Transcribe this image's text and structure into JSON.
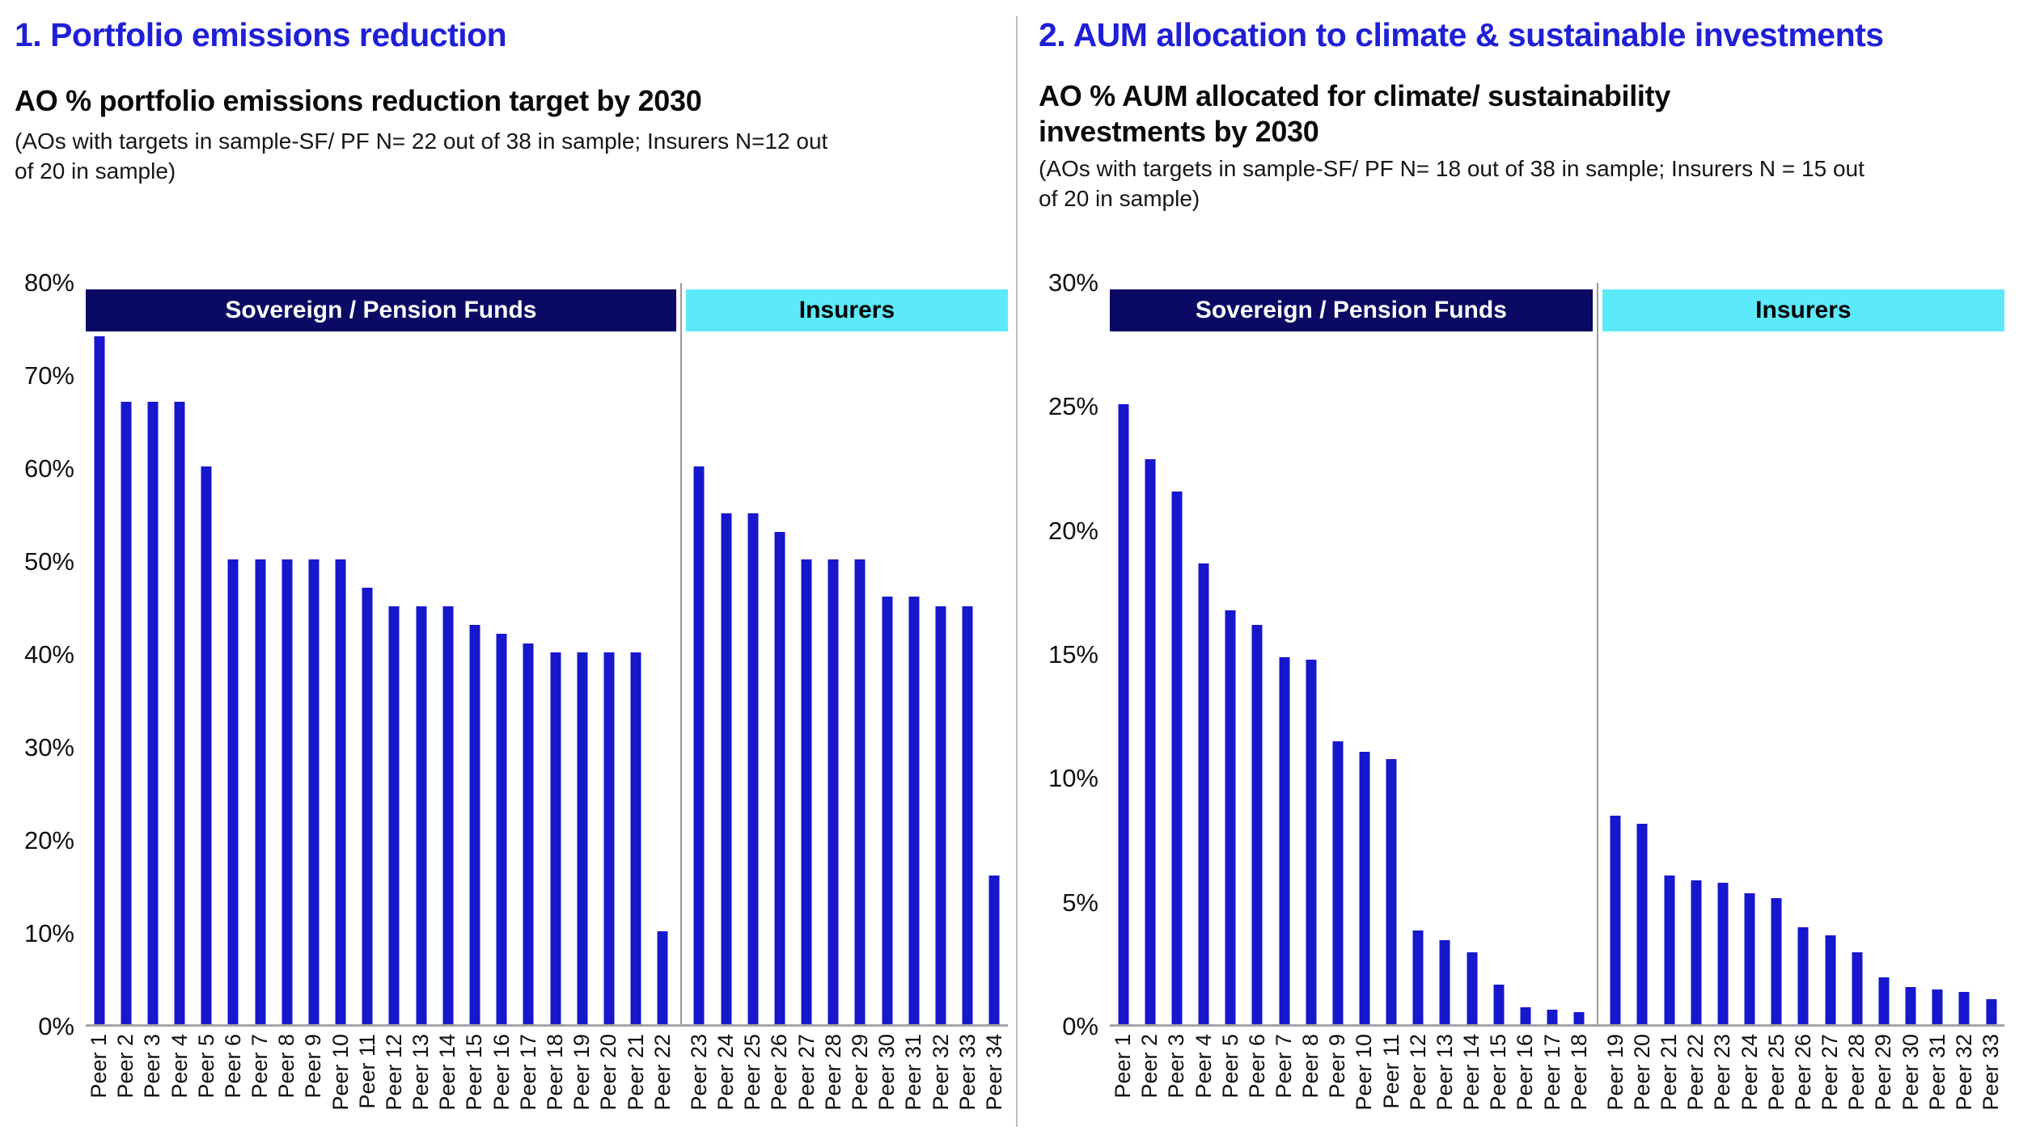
{
  "colors": {
    "bar_blue": "#1717CD",
    "banner_navy": "#0A0A64",
    "banner_cyan": "#5CE9FA",
    "heading_blue": "#1F1FD6",
    "axis_gray": "#A6A6A6",
    "section_divider_gray": "#999999",
    "panel_separator_gray": "#BDBDBD"
  },
  "chart_data": [
    {
      "type": "bar",
      "heading": "1. Portfolio emissions reduction",
      "title_lines": [
        "AO % portfolio emissions reduction target by 2030"
      ],
      "subtitle_lines": [
        "(AOs with targets in sample-SF/ PF N= 22 out of 38 in sample; Insurers N=12 out",
        "of 20 in sample)"
      ],
      "ylabel": "",
      "ylim": [
        0,
        80
      ],
      "grid": false,
      "yticks": [
        {
          "v": 0,
          "label": "0%"
        },
        {
          "v": 10,
          "label": "10%"
        },
        {
          "v": 20,
          "label": "20%"
        },
        {
          "v": 30,
          "label": "30%"
        },
        {
          "v": 40,
          "label": "40%"
        },
        {
          "v": 50,
          "label": "50%"
        },
        {
          "v": 60,
          "label": "60%"
        },
        {
          "v": 70,
          "label": "70%"
        },
        {
          "v": 80,
          "label": "80%"
        }
      ],
      "groups": [
        {
          "name": "Sovereign / Pension Funds",
          "banner": "navy",
          "categories": [
            "Peer 1",
            "Peer 2",
            "Peer 3",
            "Peer 4",
            "Peer 5",
            "Peer 6",
            "Peer 7",
            "Peer 8",
            "Peer 9",
            "Peer 10",
            "Peer 11",
            "Peer 12",
            "Peer 13",
            "Peer 14",
            "Peer 15",
            "Peer 16",
            "Peer 17",
            "Peer 18",
            "Peer 19",
            "Peer 20",
            "Peer 21",
            "Peer 22"
          ],
          "values": [
            74,
            67,
            67,
            67,
            60,
            50,
            50,
            50,
            50,
            50,
            47,
            45,
            45,
            45,
            43,
            42,
            41,
            40,
            40,
            40,
            40,
            10
          ]
        },
        {
          "name": "Insurers",
          "banner": "cyan",
          "categories": [
            "Peer 23",
            "Peer 24",
            "Peer 25",
            "Peer 26",
            "Peer 27",
            "Peer 28",
            "Peer 29",
            "Peer 30",
            "Peer 31",
            "Peer 32",
            "Peer 33",
            "Peer 34"
          ],
          "values": [
            60,
            55,
            55,
            53,
            50,
            50,
            50,
            46,
            46,
            45,
            45,
            16
          ]
        }
      ]
    },
    {
      "type": "bar",
      "heading": "2. AUM allocation to climate & sustainable investments",
      "title_lines": [
        "AO % AUM allocated for climate/ sustainability",
        "investments by 2030"
      ],
      "subtitle_lines": [
        "(AOs with targets in sample-SF/ PF N= 18 out of 38 in sample; Insurers N = 15 out",
        "of 20 in sample)"
      ],
      "ylabel": "",
      "ylim": [
        0,
        30
      ],
      "grid": false,
      "yticks": [
        {
          "v": 0,
          "label": "0%"
        },
        {
          "v": 5,
          "label": "5%"
        },
        {
          "v": 10,
          "label": "10%"
        },
        {
          "v": 15,
          "label": "15%"
        },
        {
          "v": 20,
          "label": "20%"
        },
        {
          "v": 25,
          "label": "25%"
        },
        {
          "v": 30,
          "label": "30%"
        }
      ],
      "groups": [
        {
          "name": "Sovereign / Pension Funds",
          "banner": "navy",
          "categories": [
            "Peer 1",
            "Peer 2",
            "Peer 3",
            "Peer 4",
            "Peer 5",
            "Peer 6",
            "Peer 7",
            "Peer 8",
            "Peer 9",
            "Peer 10",
            "Peer 11",
            "Peer 12",
            "Peer 13",
            "Peer 14",
            "Peer 15",
            "Peer 16",
            "Peer 17",
            "Peer 18"
          ],
          "values": [
            25,
            22.8,
            21.5,
            18.6,
            16.7,
            16.1,
            14.8,
            14.7,
            11.4,
            11.0,
            10.7,
            3.8,
            3.4,
            2.9,
            1.6,
            0.7,
            0.6,
            0.5
          ]
        },
        {
          "name": "Insurers",
          "banner": "cyan",
          "categories": [
            "Peer 19",
            "Peer 20",
            "Peer 21",
            "Peer 22",
            "Peer 23",
            "Peer 24",
            "Peer 25",
            "Peer 26",
            "Peer 27",
            "Peer 28",
            "Peer 29",
            "Peer 30",
            "Peer 31",
            "Peer 32",
            "Peer 33"
          ],
          "values": [
            8.4,
            8.1,
            6.0,
            5.8,
            5.7,
            5.3,
            5.1,
            3.9,
            3.6,
            2.9,
            1.9,
            1.5,
            1.4,
            1.3,
            1.0
          ]
        }
      ]
    }
  ]
}
